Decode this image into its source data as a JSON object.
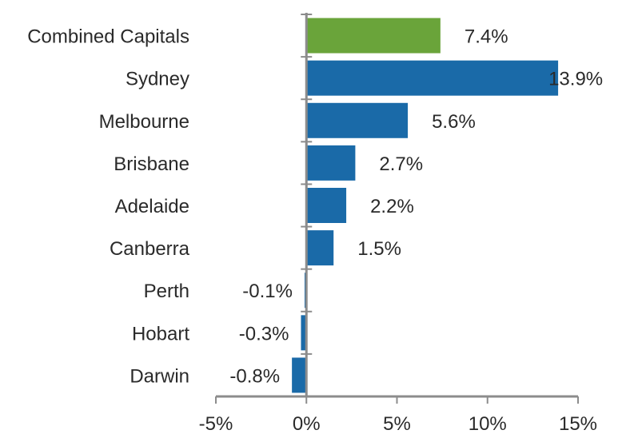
{
  "chart_data": {
    "type": "bar",
    "orientation": "horizontal",
    "categories": [
      "Combined Capitals",
      "Sydney",
      "Melbourne",
      "Brisbane",
      "Adelaide",
      "Canberra",
      "Perth",
      "Hobart",
      "Darwin"
    ],
    "values": [
      7.4,
      13.9,
      5.6,
      2.7,
      2.2,
      1.5,
      -0.1,
      -0.3,
      -0.8
    ],
    "value_labels": [
      "7.4%",
      "13.9%",
      "5.6%",
      "2.7%",
      "2.2%",
      "1.5%",
      "-0.1%",
      "-0.3%",
      "-0.8%"
    ],
    "bar_colors": [
      "#6aa43a",
      "#1a6aa8",
      "#1a6aa8",
      "#1a6aa8",
      "#1a6aa8",
      "#1a6aa8",
      "#1a6aa8",
      "#1a6aa8",
      "#1a6aa8"
    ],
    "xlim": [
      -5,
      15
    ],
    "xticks": [
      -5,
      0,
      5,
      10,
      15
    ],
    "xtick_labels": [
      "-5%",
      "0%",
      "5%",
      "10%",
      "15%"
    ],
    "title": "",
    "xlabel": "",
    "ylabel": "",
    "grid": false,
    "axis_color": "#8c8c8c"
  }
}
